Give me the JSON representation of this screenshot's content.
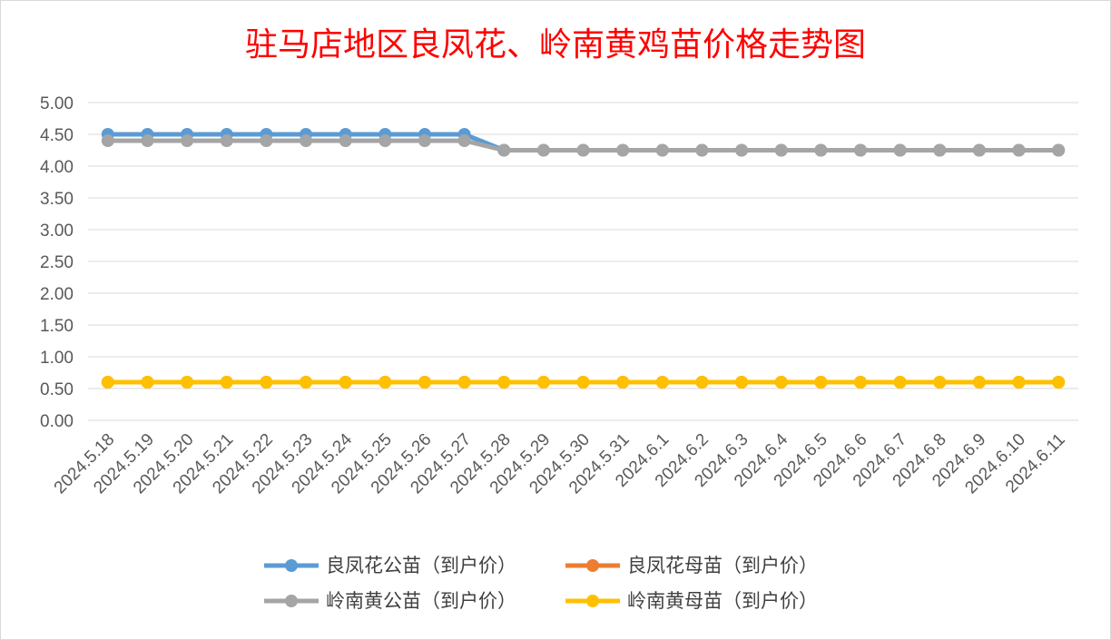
{
  "chart_data": {
    "type": "line",
    "title": "驻马店地区良凤花、岭南黄鸡苗价格走势图",
    "xlabel": "",
    "ylabel": "",
    "ylim": [
      0,
      5
    ],
    "yticks": [
      "0.00",
      "0.50",
      "1.00",
      "1.50",
      "2.00",
      "2.50",
      "3.00",
      "3.50",
      "4.00",
      "4.50",
      "5.00"
    ],
    "grid": true,
    "legend_position": "bottom",
    "categories": [
      "2024.5.18",
      "2024.5.19",
      "2024.5.20",
      "2024.5.21",
      "2024.5.22",
      "2024.5.23",
      "2024.5.24",
      "2024.5.25",
      "2024.5.26",
      "2024.5.27",
      "2024.5.28",
      "2024.5.29",
      "2024.5.30",
      "2024.5.31",
      "2024.6.1",
      "2024.6.2",
      "2024.6.3",
      "2024.6.4",
      "2024.6.5",
      "2024.6.6",
      "2024.6.7",
      "2024.6.8",
      "2024.6.9",
      "2024.6.10",
      "2024.6.11"
    ],
    "series": [
      {
        "name": "良凤花公苗（到户价）",
        "color": "#5b9bd5",
        "values": [
          4.5,
          4.5,
          4.5,
          4.5,
          4.5,
          4.5,
          4.5,
          4.5,
          4.5,
          4.5,
          4.25,
          4.25,
          4.25,
          4.25,
          4.25,
          4.25,
          4.25,
          4.25,
          4.25,
          4.25,
          4.25,
          4.25,
          4.25,
          4.25,
          4.25
        ]
      },
      {
        "name": "良凤花母苗（到户价）",
        "color": "#ed7d31",
        "values": [
          0.6,
          0.6,
          0.6,
          0.6,
          0.6,
          0.6,
          0.6,
          0.6,
          0.6,
          0.6,
          0.6,
          0.6,
          0.6,
          0.6,
          0.6,
          0.6,
          0.6,
          0.6,
          0.6,
          0.6,
          0.6,
          0.6,
          0.6,
          0.6,
          0.6
        ]
      },
      {
        "name": "岭南黄公苗（到户价）",
        "color": "#a5a5a5",
        "values": [
          4.4,
          4.4,
          4.4,
          4.4,
          4.4,
          4.4,
          4.4,
          4.4,
          4.4,
          4.4,
          4.25,
          4.25,
          4.25,
          4.25,
          4.25,
          4.25,
          4.25,
          4.25,
          4.25,
          4.25,
          4.25,
          4.25,
          4.25,
          4.25,
          4.25
        ]
      },
      {
        "name": "岭南黄母苗（到户价）",
        "color": "#ffc000",
        "values": [
          0.6,
          0.6,
          0.6,
          0.6,
          0.6,
          0.6,
          0.6,
          0.6,
          0.6,
          0.6,
          0.6,
          0.6,
          0.6,
          0.6,
          0.6,
          0.6,
          0.6,
          0.6,
          0.6,
          0.6,
          0.6,
          0.6,
          0.6,
          0.6,
          0.6
        ]
      }
    ]
  }
}
